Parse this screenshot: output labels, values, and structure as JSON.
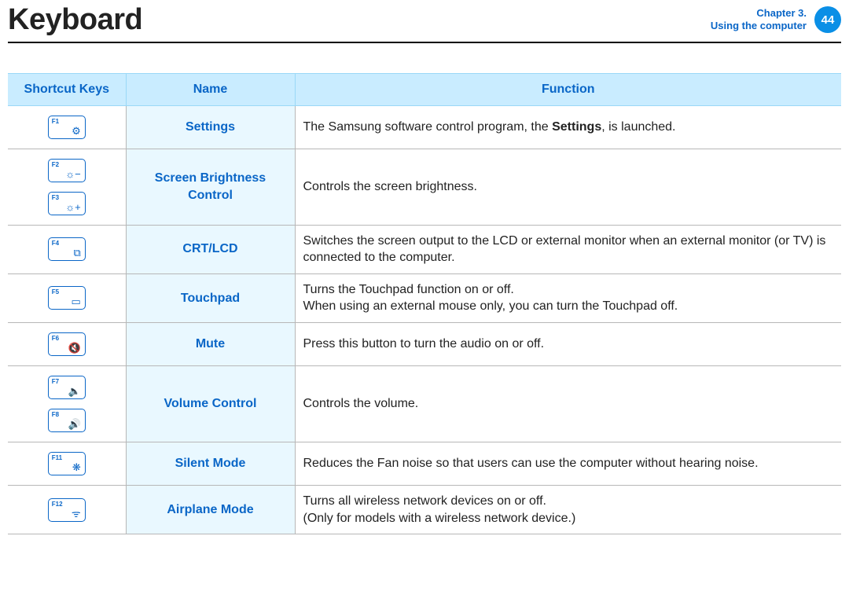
{
  "header": {
    "title": "Keyboard",
    "chapter_line1": "Chapter 3.",
    "chapter_line2": "Using the computer",
    "page_number": "44"
  },
  "table": {
    "headers": {
      "c1": "Shortcut Keys",
      "c2": "Name",
      "c3": "Function"
    },
    "rows": [
      {
        "keys": [
          {
            "label": "F1",
            "icon": "⚙"
          }
        ],
        "name": "Settings",
        "func_html": "The Samsung software control program, the <b>Settings</b>, is launched."
      },
      {
        "keys": [
          {
            "label": "F2",
            "icon": "☼−"
          },
          {
            "label": "F3",
            "icon": "☼+"
          }
        ],
        "name": "Screen Brightness Control",
        "func_html": "Controls the screen brightness."
      },
      {
        "keys": [
          {
            "label": "F4",
            "icon": "⧉"
          }
        ],
        "name": "CRT/LCD",
        "func_html": "Switches the screen output to the LCD or external monitor when an external monitor (or TV) is connected to the computer."
      },
      {
        "keys": [
          {
            "label": "F5",
            "icon": "▭"
          }
        ],
        "name": "Touchpad",
        "func_html": "Turns the Touchpad function on or off.<br>When using an external mouse only, you can turn the Touchpad off."
      },
      {
        "keys": [
          {
            "label": "F6",
            "icon": "🔇"
          }
        ],
        "name": "Mute",
        "func_html": "Press this button to turn the audio on or off."
      },
      {
        "keys": [
          {
            "label": "F7",
            "icon": "🔈"
          },
          {
            "label": "F8",
            "icon": "🔊"
          }
        ],
        "name": "Volume Control",
        "func_html": "Controls the volume."
      },
      {
        "keys": [
          {
            "label": "F11",
            "icon": "❋"
          }
        ],
        "name": "Silent Mode",
        "func_html": "Reduces the Fan noise so that users can use the computer without hearing noise."
      },
      {
        "keys": [
          {
            "label": "F12",
            "icon": "ᯤ"
          }
        ],
        "name": "Airplane Mode",
        "func_html": "Turns all wireless network devices on or off.<br>(Only for models with a wireless network device.)"
      }
    ]
  }
}
